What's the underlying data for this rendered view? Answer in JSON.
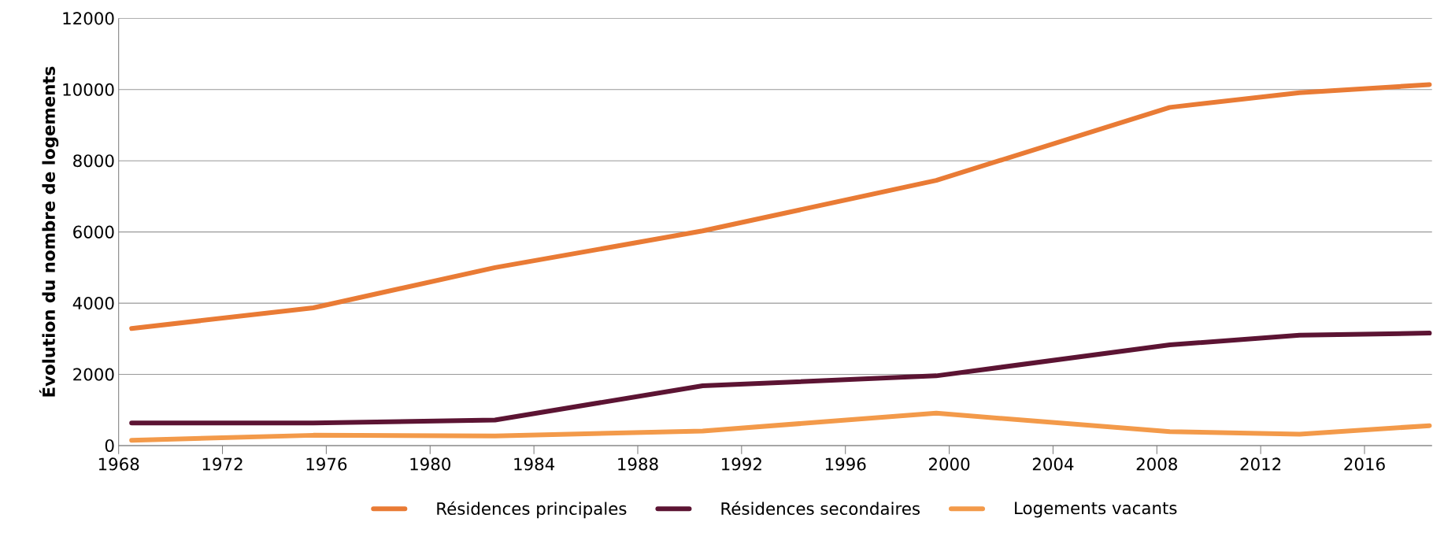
{
  "chart_data": {
    "type": "line",
    "ylabel": "**Évolution du nombre de logements**",
    "x": [
      1968.5,
      1975.5,
      1982.5,
      1990.5,
      1999.5,
      2008.5,
      2013.5,
      2018.5
    ],
    "series": [
      {
        "name": "Résidences principales",
        "color": "#e97b35",
        "values": [
          3290,
          3870,
          5000,
          6030,
          7450,
          9500,
          9910,
          10140
        ]
      },
      {
        "name": "Résidences secondaires",
        "color": "#5c1433",
        "values": [
          635,
          635,
          720,
          1680,
          1960,
          2830,
          3100,
          3160
        ]
      },
      {
        "name": "Logements vacants",
        "color": "#f39a4a",
        "values": [
          150,
          290,
          270,
          410,
          910,
          390,
          320,
          560
        ]
      }
    ],
    "xlim": [
      1968,
      2018.6
    ],
    "xticks": [
      1968,
      1972,
      1976,
      1980,
      1984,
      1988,
      1992,
      1996,
      2000,
      2004,
      2008,
      2012,
      2016
    ],
    "ylim": [
      0,
      12000
    ],
    "yticks": [
      0,
      2000,
      4000,
      6000,
      8000,
      10000,
      12000
    ],
    "grid": "y",
    "legend": "bottom",
    "marker": "none",
    "line_style": "solid"
  }
}
